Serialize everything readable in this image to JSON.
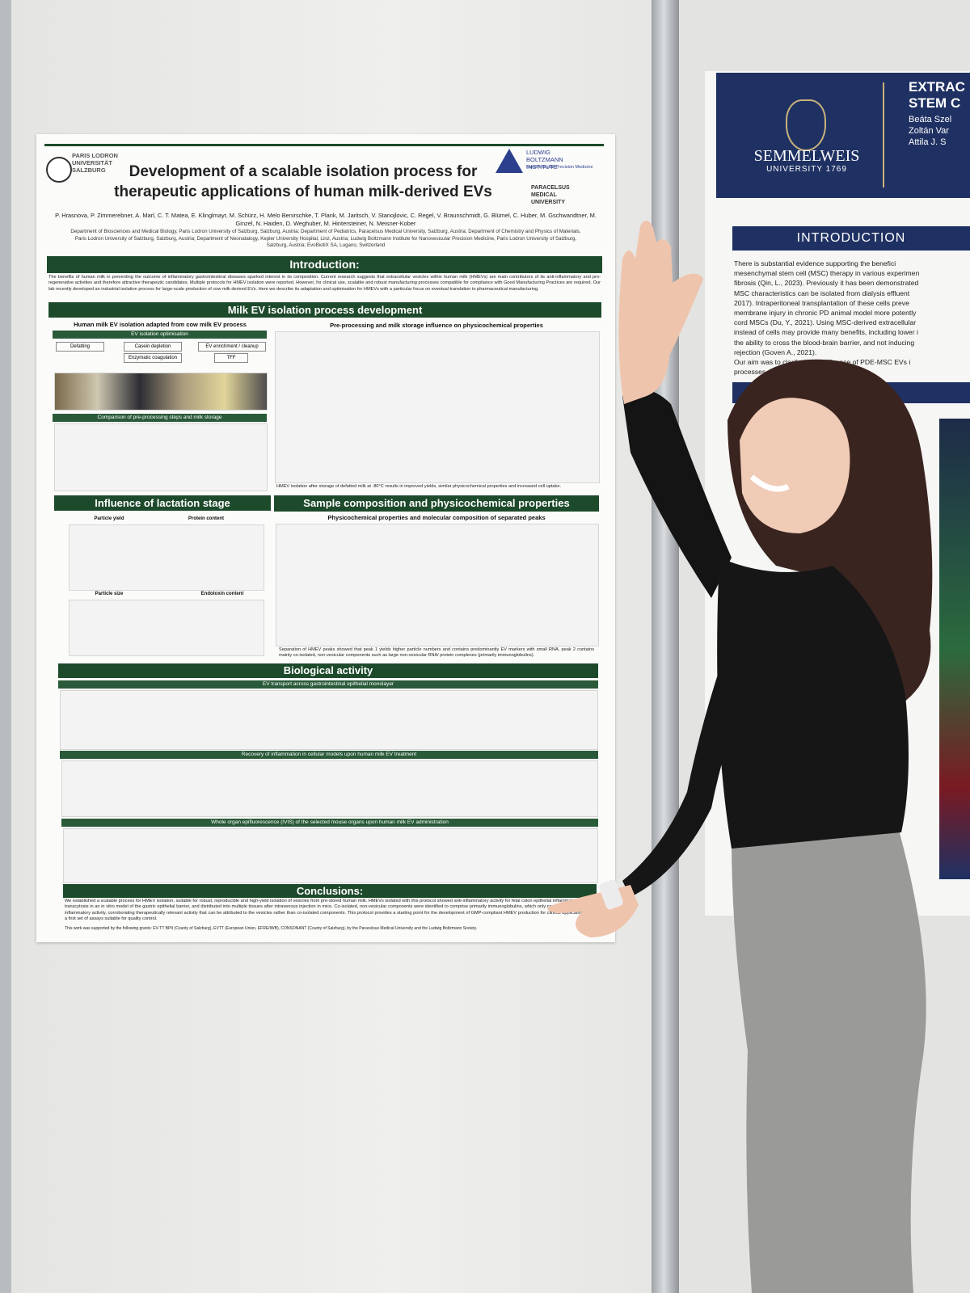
{
  "poster": {
    "logo_left": "PARIS LODRON UNIVERSITÄT SALZBURG",
    "logo_lbi": "LUDWIG BOLTZMANN INSTITUTE",
    "logo_lbi_sub": "Nanovesicular Precision Medicine",
    "logo_pmu": "PARACELSUS MEDICAL UNIVERSITY",
    "title_line1": "Development of a scalable isolation process for",
    "title_line2": "therapeutic applications of human milk-derived EVs",
    "authors": "P. Hrasnova, P. Zimmerebner, A. Marl, C. T. Matea, E. Klinglmayr, M. Schürz, H. Melo Benirschke, T. Plank, M. Jaritsch, V. Stanojlovic, C. Regel, V. Braunschmidt, G. Blümel, C. Huber, M. Gschwandtner, M. Ginzel, N. Haiden, D. Weghuber, M. Hintersteiner, N. Meisner-Kober",
    "affiliations": "Department of Biosciences and Medical Biology, Paris Lodron University of Salzburg, Salzburg, Austria; Department of Pediatrics, Paracelsus Medical University, Salzburg, Austria; Department of Chemistry and Physics of Materials, Paris Lodron University of Salzburg, Salzburg, Austria; Department of Neonatalogy, Kepler University Hospital, Linz, Austria; Ludwig Boltzmann Institute for Nanovesicular Precision Medicine, Paris Lodron University of Salzburg, Salzburg, Austria; EvoBiotiX SA, Lugano, Switzerland",
    "introduction": {
      "heading": "Introduction:",
      "text": "The benefits of human milk in preventing the outcome of inflammatory gastrointestinal diseases sparked interest in its composition. Current research suggests that extracellular vesicles within human milk (HMEVs) are main contributors of its anti-inflammatory and pro-regenerative activities and therefore attractive therapeutic candidates. Multiple protocols for HMEV isolation were reported. However, for clinical use, scalable and robust manufacturing processes compatible for compliance with Good Manufacturing Practices are required. Our lab recently developed an industrial isolation process for large-scale production of cow milk derived EVs. Here we describe its adaptation and optimisation for HMEVs with a particular focus on eventual translation to pharmaceutical manufacturing."
    },
    "isolation": {
      "heading": "Milk EV isolation process development",
      "panel_left": "Human milk EV isolation adapted from cow milk EV process",
      "panel_left_sub1": "EV isolation optimisation",
      "panel_left_sub2": "Comparison of pre-processing steps and milk storage",
      "steps": [
        "Defatting",
        "Casein depletion",
        "EV enrichment / cleanup",
        "Enzymatic coagulation",
        "TFF"
      ],
      "panel_right": "Pre-processing and milk storage influence on physicochemical properties",
      "note": "HMEV isolation after storage of defatted milk at -80°C results in improved yields, similar physicochemical properties and increased cell uptake."
    },
    "lactation": {
      "heading": "Influence of lactation stage",
      "plots": [
        "Particle yield",
        "Protein content",
        "Particle size",
        "Endotoxin content"
      ]
    },
    "composition": {
      "heading": "Sample composition and physicochemical properties",
      "panel": "Physicochemical properties and molecular composition of separated peaks",
      "note": "Separation of HMEV peaks showed that peak 1 yields higher particle numbers and contains predominantly EV markers with small RNA, peak 2 contains mainly co-isolated, non-vesicular components such as large non-vesicular RNA/ protein complexes (primarily immunoglobulins)."
    },
    "biological": {
      "heading": "Biological activity",
      "sub1": "EV transport across gastrointestinal epithelial monolayer",
      "sub2": "Recovery of inflammation in cellular models upon human milk EV treatment",
      "sub3": "Whole organ epifluorescence (IVIS) of the selected mouse organs upon human milk EV administration"
    },
    "conclusions": {
      "heading": "Conclusions:",
      "text": "We established a scalable process for HMEV isolation, suitable for robust, reproducible and high-yield isolation of vesicles from pre-stored human milk. HMEVs isolated with this protocol showed anti-inflammatory activity for fetal colon epithelial inflammation, showed transcytosis in an in vitro model of the gastric epithelial barrier, and distributed into multiple tissues after intravenous injection in mice. Co-isolated, non-vesicular components were identified to comprise primarily immunoglobulins, which only contributed minimal anti-inflammatory activity, corroborating therapeutically relevant activity that can be attributed to the vesicles rather than co-isolated components. This protocol provides a starting point for the development of GMP-compliant HMEV production for clinical applications, with a first set of assays suitable for quality control.",
      "funding": "This work was supported by the following grants: EV-TT BPtI (County of Salzburg), EVTT (European Union, EFRE/IWB), CONSONANT (County of Salzburg), by the Paracelsus Medical University and the Ludwig Boltzmann Society."
    }
  },
  "right_poster": {
    "title_line1": "EXTRAC",
    "title_line2": "STEM C",
    "authors": [
      "Beáta Szel",
      "Zoltán Var",
      "Attila J. S"
    ],
    "university": "SEMMELWEIS",
    "university_sub": "UNIVERSITY 1769",
    "introduction_heading": "INTRODUCTION",
    "introduction_lines": [
      "There is substantial evidence supporting the benefici",
      "mesenchymal stem cell (MSC) therapy in various experimen",
      "fibrosis (Qin, L., 2023). Previously it has been demonstrated",
      "MSC characteristics can be isolated from dialysis effluent",
      "2017). Intraperitoneal transplantation of these cells preve",
      "membrane injury in chronic PD animal model more potently",
      "cord MSCs (Du, Y., 2021). Using MSC-derived extracellular",
      "instead of cells may provide many benefits, including lower i",
      "the ability to cross the blood-brain barrier, and not inducing",
      "rejection (Goven A., 2021).",
      "Our aim was to clarify the significance of PDE-MSC EVs i",
      "processes."
    ]
  }
}
